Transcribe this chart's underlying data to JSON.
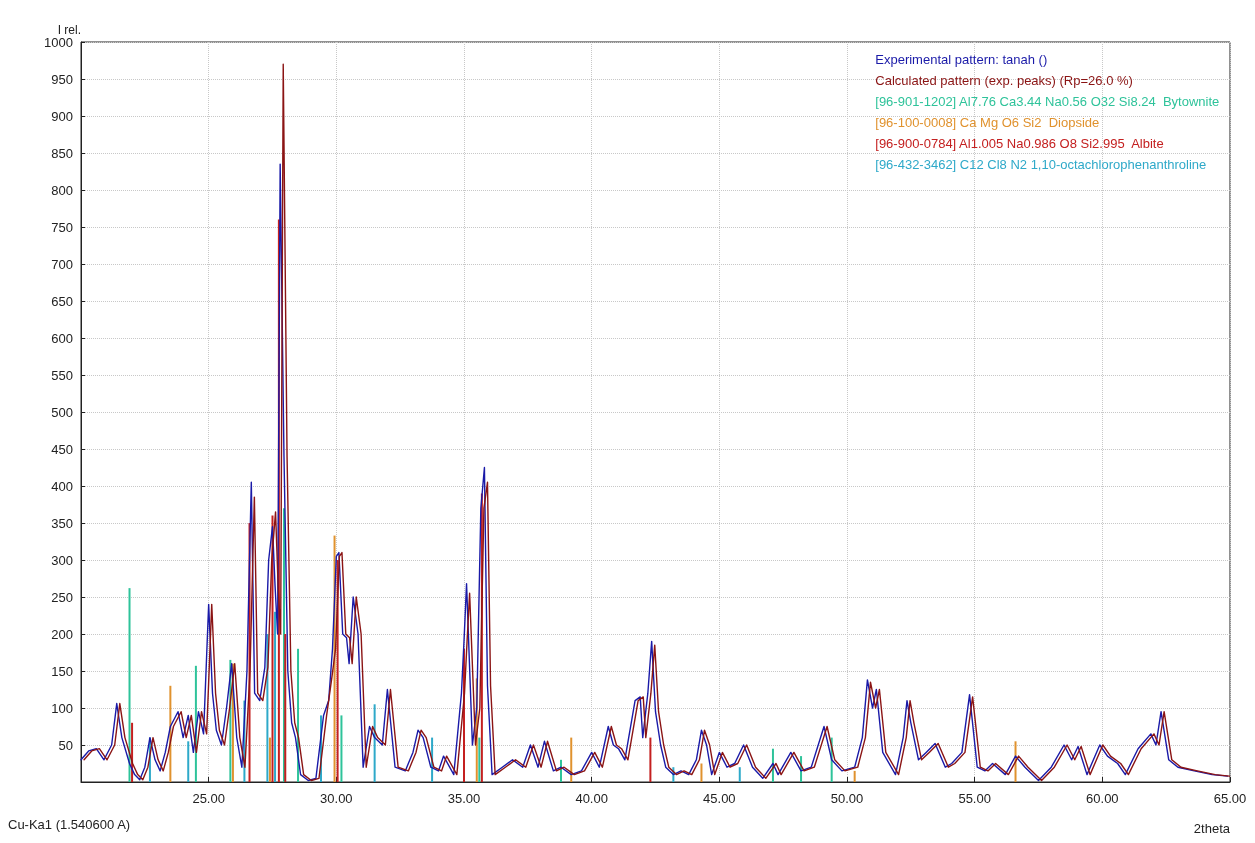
{
  "chart_data": {
    "type": "line",
    "ylabel": "I rel.",
    "xlabel": "2theta",
    "annotations": [
      "Cu-Ka1 (1.540600 A)"
    ],
    "xlim": [
      20,
      65
    ],
    "xticks": [
      {
        "value": 25,
        "label": "25.00"
      },
      {
        "value": 30,
        "label": "30.00"
      },
      {
        "value": 35,
        "label": "35.00"
      },
      {
        "value": 40,
        "label": "40.00"
      },
      {
        "value": 45,
        "label": "45.00"
      },
      {
        "value": 50,
        "label": "50.00"
      },
      {
        "value": 55,
        "label": "55.00"
      },
      {
        "value": 60,
        "label": "60.00"
      },
      {
        "value": 65,
        "label": "65.00"
      }
    ],
    "ylim": [
      0,
      1000
    ],
    "yticks": [
      50,
      100,
      150,
      200,
      250,
      300,
      350,
      400,
      450,
      500,
      550,
      600,
      650,
      700,
      750,
      800,
      850,
      900,
      950,
      1000
    ],
    "grid": true,
    "legend": "top right",
    "marker": "none",
    "x": [
      20.0,
      20.3,
      20.6,
      20.9,
      21.2,
      21.4,
      21.6,
      21.9,
      22.1,
      22.3,
      22.5,
      22.7,
      22.9,
      23.1,
      23.3,
      23.5,
      23.8,
      24.0,
      24.2,
      24.4,
      24.6,
      24.8,
      25.0,
      25.15,
      25.3,
      25.5,
      25.7,
      25.9,
      26.1,
      26.3,
      26.5,
      26.67,
      26.8,
      27.0,
      27.2,
      27.35,
      27.5,
      27.6,
      27.7,
      27.8,
      27.95,
      28.1,
      28.25,
      28.4,
      28.6,
      28.9,
      29.2,
      29.5,
      29.7,
      29.85,
      30.0,
      30.1,
      30.25,
      30.4,
      30.5,
      30.66,
      30.85,
      31.05,
      31.3,
      31.5,
      31.8,
      32.0,
      32.3,
      32.7,
      33.0,
      33.2,
      33.4,
      33.7,
      34.0,
      34.2,
      34.6,
      34.9,
      35.0,
      35.1,
      35.33,
      35.5,
      35.66,
      35.8,
      35.92,
      36.1,
      36.5,
      36.9,
      37.3,
      37.6,
      37.9,
      38.15,
      38.5,
      38.8,
      39.2,
      39.6,
      40.0,
      40.3,
      40.65,
      40.85,
      41.05,
      41.3,
      41.7,
      41.9,
      42.0,
      42.2,
      42.35,
      42.5,
      42.7,
      42.9,
      43.2,
      43.5,
      43.8,
      44.1,
      44.3,
      44.5,
      44.7,
      45.0,
      45.3,
      45.6,
      45.95,
      46.3,
      46.7,
      47.1,
      47.3,
      47.8,
      48.2,
      48.6,
      49.1,
      49.4,
      49.8,
      50.3,
      50.6,
      50.8,
      51.0,
      51.15,
      51.4,
      51.9,
      52.2,
      52.35,
      52.5,
      52.8,
      53.1,
      53.45,
      53.85,
      54.1,
      54.5,
      54.8,
      55.1,
      55.4,
      55.7,
      56.2,
      56.6,
      56.97,
      57.5,
      58.0,
      58.5,
      58.8,
      59.05,
      59.4,
      59.9,
      60.2,
      60.6,
      60.9,
      61.4,
      61.9,
      62.1,
      62.3,
      62.6,
      62.96,
      63.6,
      64.3,
      64.9
    ],
    "series": [
      {
        "name": "Experimental pattern: tanah ()",
        "color": "#1a1aa8",
        "values": [
          30,
          42,
          45,
          30,
          50,
          106,
          60,
          25,
          10,
          3,
          20,
          60,
          30,
          15,
          40,
          75,
          95,
          60,
          90,
          40,
          95,
          65,
          240,
          120,
          70,
          50,
          100,
          160,
          60,
          20,
          150,
          405,
          120,
          110,
          155,
          300,
          345,
          265,
          200,
          835,
          440,
          150,
          80,
          60,
          10,
          2,
          5,
          90,
          110,
          180,
          305,
          310,
          200,
          195,
          160,
          250,
          200,
          20,
          75,
          60,
          50,
          125,
          20,
          15,
          40,
          70,
          60,
          20,
          15,
          35,
          10,
          120,
          190,
          268,
          50,
          100,
          370,
          425,
          130,
          10,
          20,
          30,
          20,
          50,
          20,
          55,
          15,
          20,
          10,
          15,
          40,
          20,
          75,
          50,
          45,
          30,
          110,
          115,
          60,
          120,
          190,
          95,
          50,
          20,
          10,
          15,
          10,
          30,
          70,
          50,
          10,
          40,
          20,
          25,
          50,
          20,
          5,
          25,
          10,
          40,
          15,
          20,
          75,
          30,
          15,
          20,
          60,
          138,
          100,
          125,
          40,
          10,
          60,
          110,
          80,
          30,
          40,
          52,
          20,
          25,
          40,
          118,
          20,
          15,
          25,
          10,
          35,
          20,
          2,
          20,
          50,
          30,
          48,
          10,
          50,
          35,
          25,
          10,
          45,
          65,
          50,
          95,
          30,
          20,
          15,
          10,
          8
        ]
      },
      {
        "name": "Calculated pattern (exp. peaks) (Rp=26.0 %)",
        "color": "#8b1414",
        "x": [
          20.12,
          20.42,
          20.72,
          21.02,
          21.32,
          21.52,
          21.72,
          22.02,
          22.22,
          22.42,
          22.62,
          22.82,
          23.02,
          23.22,
          23.42,
          23.62,
          23.92,
          24.12,
          24.32,
          24.52,
          24.72,
          24.92,
          25.12,
          25.27,
          25.42,
          25.62,
          25.82,
          26.02,
          26.22,
          26.42,
          26.62,
          26.79,
          26.92,
          27.12,
          27.32,
          27.47,
          27.62,
          27.72,
          27.82,
          27.92,
          28.07,
          28.22,
          28.37,
          28.52,
          28.72,
          29.02,
          29.32,
          29.62,
          29.82,
          29.97,
          30.12,
          30.22,
          30.37,
          30.52,
          30.62,
          30.78,
          30.97,
          31.17,
          31.42,
          31.62,
          31.92,
          32.12,
          32.42,
          32.82,
          33.12,
          33.32,
          33.52,
          33.82,
          34.12,
          34.32,
          34.72,
          35.02,
          35.12,
          35.22,
          35.45,
          35.62,
          35.78,
          35.92,
          36.04,
          36.22,
          36.62,
          37.02,
          37.42,
          37.72,
          38.02,
          38.27,
          38.62,
          38.92,
          39.32,
          39.72,
          40.12,
          40.42,
          40.77,
          40.97,
          41.17,
          41.42,
          41.82,
          42.02,
          42.12,
          42.32,
          42.47,
          42.62,
          42.82,
          43.02,
          43.32,
          43.62,
          43.92,
          44.22,
          44.42,
          44.62,
          44.82,
          45.12,
          45.42,
          45.72,
          46.07,
          46.42,
          46.82,
          47.22,
          47.42,
          47.92,
          48.32,
          48.72,
          49.22,
          49.52,
          49.92,
          50.42,
          50.72,
          50.92,
          51.12,
          51.27,
          51.52,
          52.02,
          52.32,
          52.47,
          52.62,
          52.92,
          53.22,
          53.57,
          53.97,
          54.22,
          54.62,
          54.92,
          55.22,
          55.52,
          55.82,
          56.32,
          56.72,
          57.09,
          57.62,
          58.12,
          58.62,
          58.92,
          59.17,
          59.52,
          60.02,
          60.32,
          60.72,
          61.02,
          61.52,
          62.02,
          62.22,
          62.42,
          62.72,
          63.08,
          63.72,
          64.42,
          64.98
        ],
        "values": [
          30,
          42,
          45,
          30,
          50,
          106,
          60,
          25,
          10,
          3,
          20,
          60,
          30,
          15,
          40,
          75,
          95,
          60,
          90,
          40,
          95,
          65,
          240,
          120,
          70,
          50,
          100,
          160,
          60,
          20,
          150,
          385,
          120,
          110,
          155,
          300,
          365,
          265,
          200,
          970,
          440,
          150,
          80,
          60,
          10,
          2,
          5,
          90,
          140,
          180,
          305,
          310,
          200,
          195,
          160,
          250,
          200,
          20,
          75,
          60,
          50,
          125,
          20,
          15,
          40,
          70,
          60,
          20,
          15,
          35,
          10,
          120,
          190,
          255,
          50,
          100,
          370,
          405,
          130,
          10,
          20,
          30,
          20,
          50,
          20,
          55,
          15,
          20,
          10,
          15,
          40,
          20,
          75,
          50,
          45,
          30,
          110,
          115,
          60,
          120,
          185,
          95,
          50,
          20,
          10,
          15,
          10,
          30,
          70,
          50,
          10,
          40,
          20,
          25,
          50,
          20,
          5,
          25,
          10,
          40,
          15,
          20,
          75,
          30,
          15,
          20,
          60,
          135,
          100,
          125,
          40,
          10,
          60,
          110,
          80,
          30,
          40,
          52,
          20,
          25,
          40,
          115,
          20,
          15,
          25,
          10,
          35,
          20,
          2,
          20,
          50,
          30,
          48,
          10,
          50,
          35,
          25,
          10,
          45,
          65,
          50,
          95,
          30,
          20,
          15,
          10,
          8
        ]
      },
      {
        "name": "[96-901-1202] Al7.76 Ca3.44 Na0.56 O32 Si8.24  Bytownite",
        "type": "bar",
        "color": "#2ec39a",
        "x": [
          21.9,
          24.5,
          25.85,
          27.95,
          28.5,
          30.2,
          35.6,
          38.8,
          47.1,
          48.2,
          49.4
        ],
        "values": [
          262,
          157,
          165,
          370,
          180,
          90,
          60,
          30,
          45,
          35,
          60
        ]
      },
      {
        "name": "[96-100-0008] Ca Mg O6 Si2  Diopside",
        "type": "bar",
        "color": "#e0922e",
        "x": [
          23.5,
          25.95,
          27.4,
          29.93,
          35.5,
          39.2,
          44.3,
          50.3,
          56.6
        ],
        "values": [
          130,
          160,
          60,
          333,
          140,
          60,
          25,
          15,
          55
        ]
      },
      {
        "name": "[96-900-0784] Al1.005 Na0.986 O8 Si2.995  Albite",
        "type": "bar",
        "color": "#c42020",
        "x": [
          22.0,
          26.6,
          27.5,
          27.75,
          28.0,
          30.05,
          35.0,
          35.7,
          42.3
        ],
        "values": [
          80,
          350,
          360,
          760,
          200,
          300,
          180,
          390,
          60
        ]
      },
      {
        "name": "[96-432-3462] C12 Cl8 N2 1,10-octachlorophenanthroline",
        "type": "bar",
        "color": "#2ea9c9",
        "x": [
          22.7,
          24.2,
          26.4,
          27.3,
          27.6,
          29.4,
          31.5,
          33.75,
          43.2,
          45.8
        ],
        "values": [
          60,
          55,
          110,
          200,
          230,
          90,
          105,
          60,
          20,
          20
        ]
      }
    ]
  }
}
